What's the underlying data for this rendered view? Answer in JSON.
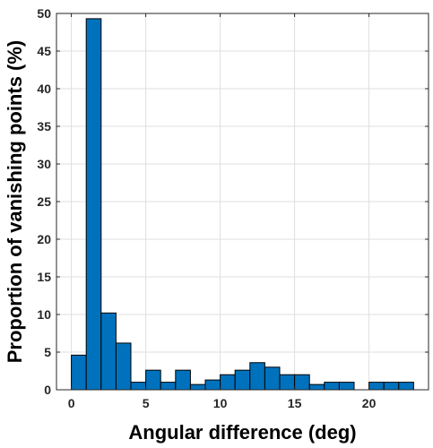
{
  "chart_data": {
    "type": "bar",
    "xlabel": "Angular difference (deg)",
    "ylabel": "Proportion of vanishing points (%)",
    "xlim": [
      -1,
      24
    ],
    "ylim": [
      0,
      50
    ],
    "xticks": [
      0,
      5,
      10,
      15,
      20
    ],
    "yticks": [
      0,
      5,
      10,
      15,
      20,
      25,
      30,
      35,
      40,
      45,
      50
    ],
    "grid": true,
    "bar_color": "#0072BD",
    "bin_width": 1,
    "bin_edges_start": 0,
    "values": [
      4.6,
      49.3,
      10.2,
      6.2,
      1.0,
      2.6,
      1.0,
      2.6,
      0.7,
      1.3,
      2.0,
      2.6,
      3.6,
      3.0,
      2.0,
      2.0,
      0.7,
      1.0,
      1.0,
      0.0,
      1.0,
      1.0,
      1.0
    ]
  }
}
